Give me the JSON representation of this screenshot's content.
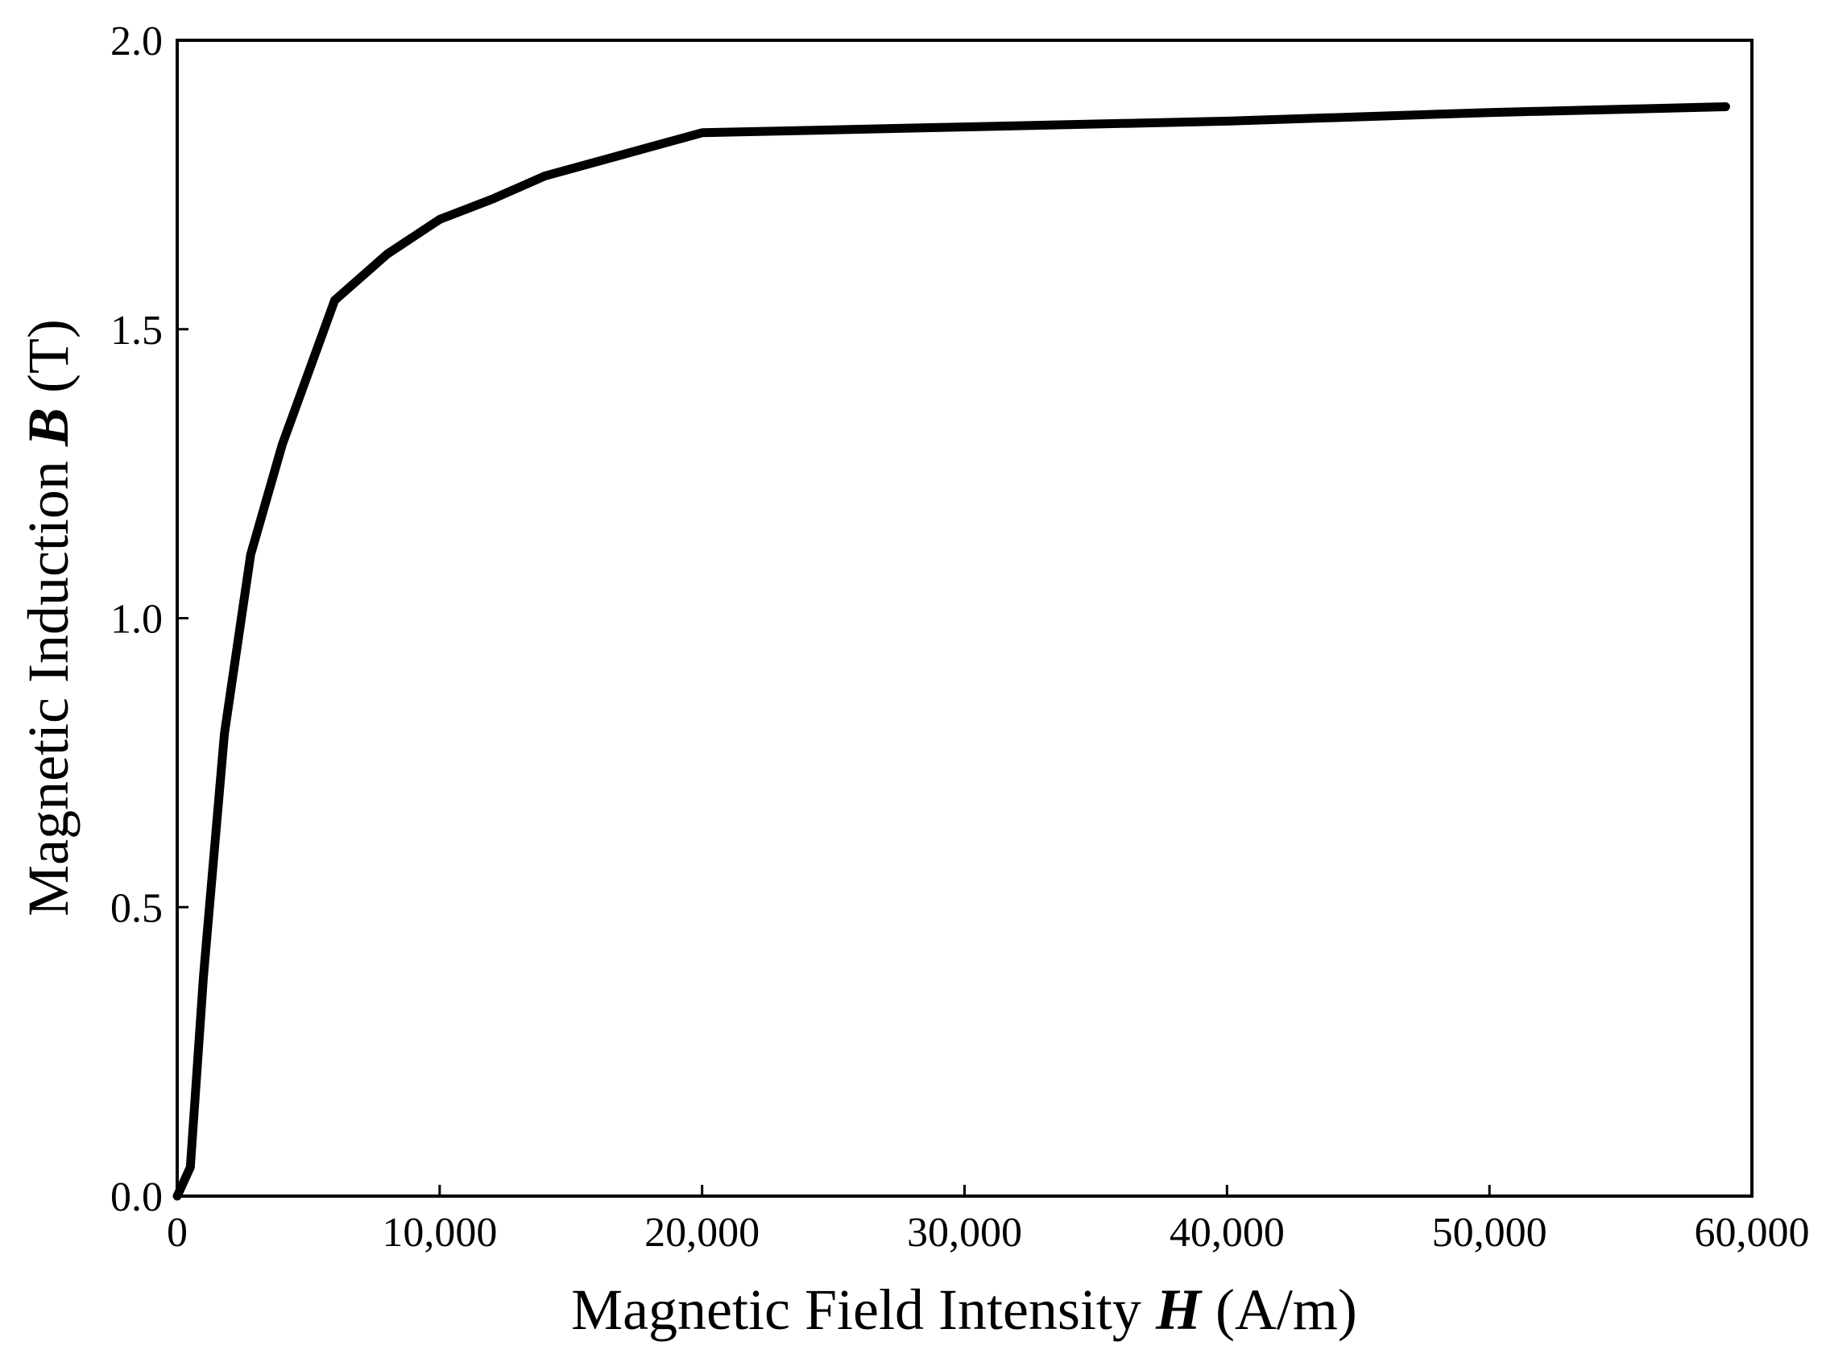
{
  "chart_data": {
    "type": "line",
    "xlabel": {
      "prefix": "Magnetic Field Intensity ",
      "symbol": "H",
      "suffix": " (A/m)"
    },
    "ylabel": {
      "prefix": "Magnetic Induction ",
      "symbol": "B",
      "suffix": " (T)"
    },
    "xlim": [
      0,
      60000
    ],
    "ylim": [
      0,
      2
    ],
    "x_ticks": [
      0,
      10000,
      20000,
      30000,
      40000,
      50000,
      60000
    ],
    "x_tick_labels": [
      "0",
      "10,000",
      "20,000",
      "30,000",
      "40,000",
      "50,000",
      "60,000"
    ],
    "y_ticks": [
      0,
      0.5,
      1,
      1.5,
      2
    ],
    "y_tick_labels": [
      "0.0",
      "0.5",
      "1.0",
      "1.5",
      "2.0"
    ],
    "grid": false,
    "line_color": "#000000",
    "series": [
      {
        "x": [
          0,
          500,
          1000,
          1800,
          2800,
          4000,
          6000,
          8000,
          10000,
          12000,
          14000,
          16000,
          18000,
          20000,
          30000,
          40000,
          50000,
          59000
        ],
        "y": [
          0,
          0.05,
          0.38,
          0.8,
          1.11,
          1.3,
          1.55,
          1.63,
          1.69,
          1.725,
          1.765,
          1.79,
          1.815,
          1.84,
          1.85,
          1.86,
          1.875,
          1.885
        ]
      }
    ]
  }
}
